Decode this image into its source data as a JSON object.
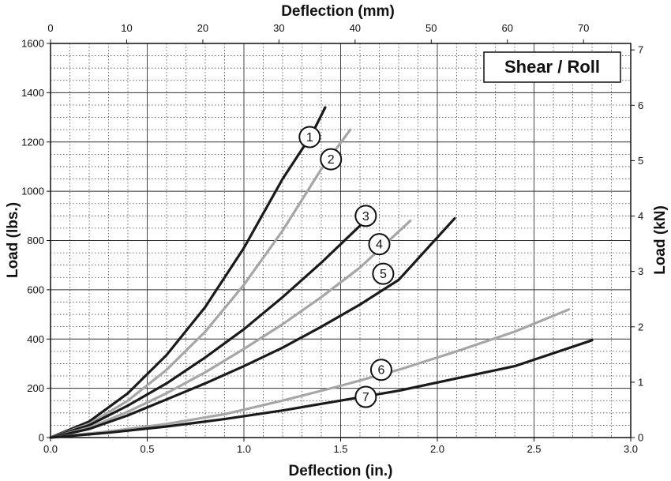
{
  "chart_data": {
    "type": "line",
    "title": "Shear / Roll",
    "xlabel": "Deflection (in.)",
    "ylabel": "Load (lbs.)",
    "x2label": "Deflection (mm)",
    "y2label": "Load (kN)",
    "xlim": [
      0,
      3.0
    ],
    "ylim": [
      0,
      1600
    ],
    "x2lim": [
      0,
      76.2
    ],
    "y2lim": [
      0,
      7.117
    ],
    "xticks": [
      "0.0",
      "0.5",
      "1.0",
      "1.5",
      "2.0",
      "2.5",
      "3.0"
    ],
    "yticks": [
      "0",
      "200",
      "400",
      "600",
      "800",
      "1000",
      "1200",
      "1400",
      "1600"
    ],
    "x2ticks": [
      "0",
      "10",
      "20",
      "30",
      "40",
      "50",
      "60",
      "70"
    ],
    "y2ticks": [
      "0",
      "1",
      "2",
      "3",
      "4",
      "5",
      "6",
      "7"
    ],
    "grid": true,
    "colors": {
      "dark": "#1a1a1a",
      "light": "#a6a6a6"
    },
    "series": [
      {
        "name": "1",
        "color": "dark",
        "label_at": [
          1.34,
          1220
        ],
        "x": [
          0,
          0.2,
          0.4,
          0.6,
          0.8,
          1.0,
          1.2,
          1.35,
          1.42
        ],
        "y": [
          0,
          65,
          180,
          335,
          530,
          770,
          1050,
          1230,
          1340
        ]
      },
      {
        "name": "2",
        "color": "light",
        "label_at": [
          1.45,
          1130
        ],
        "x": [
          0,
          0.2,
          0.4,
          0.6,
          0.8,
          1.0,
          1.2,
          1.4,
          1.55
        ],
        "y": [
          0,
          55,
          150,
          275,
          430,
          620,
          840,
          1090,
          1250
        ]
      },
      {
        "name": "3",
        "color": "dark",
        "label_at": [
          1.63,
          900
        ],
        "x": [
          0,
          0.2,
          0.4,
          0.6,
          0.8,
          1.0,
          1.2,
          1.4,
          1.6
        ],
        "y": [
          0,
          50,
          130,
          220,
          325,
          440,
          570,
          710,
          860
        ]
      },
      {
        "name": "4",
        "color": "light",
        "label_at": [
          1.7,
          785
        ],
        "x": [
          0,
          0.2,
          0.4,
          0.6,
          0.8,
          1.0,
          1.2,
          1.4,
          1.6,
          1.86
        ],
        "y": [
          0,
          40,
          105,
          180,
          265,
          360,
          460,
          570,
          690,
          880
        ]
      },
      {
        "name": "5",
        "color": "dark",
        "label_at": [
          1.72,
          665
        ],
        "x": [
          0,
          0.2,
          0.4,
          0.6,
          0.8,
          1.0,
          1.2,
          1.4,
          1.6,
          1.8,
          2.09
        ],
        "y": [
          0,
          35,
          90,
          155,
          220,
          290,
          365,
          450,
          540,
          640,
          890
        ]
      },
      {
        "name": "6",
        "color": "light",
        "label_at": [
          1.71,
          275
        ],
        "x": [
          0,
          0.3,
          0.6,
          0.9,
          1.2,
          1.5,
          1.8,
          2.1,
          2.4,
          2.68
        ],
        "y": [
          0,
          25,
          55,
          95,
          150,
          210,
          275,
          350,
          430,
          520
        ]
      },
      {
        "name": "7",
        "color": "dark",
        "label_at": [
          1.63,
          165
        ],
        "x": [
          0,
          0.3,
          0.6,
          0.9,
          1.2,
          1.5,
          1.8,
          2.1,
          2.4,
          2.8
        ],
        "y": [
          0,
          20,
          45,
          75,
          110,
          150,
          190,
          240,
          290,
          395
        ]
      }
    ]
  }
}
